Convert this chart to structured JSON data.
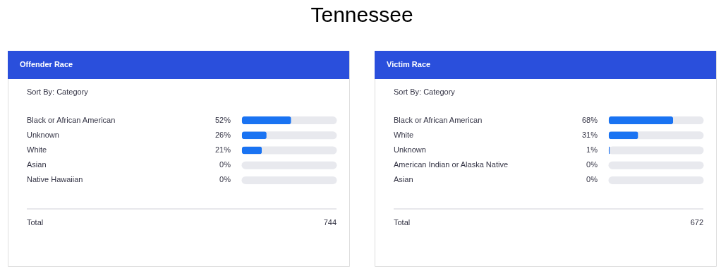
{
  "chart_data": [
    {
      "type": "bar",
      "orientation": "horizontal",
      "title": "Offender Race",
      "categories": [
        "Black or African American",
        "Unknown",
        "White",
        "Asian",
        "Native Hawaiian"
      ],
      "values": [
        52,
        26,
        21,
        0,
        0
      ],
      "value_labels": [
        "52%",
        "26%",
        "21%",
        "0%",
        "0%"
      ],
      "color": "#1a73f2",
      "annotations": [
        "Tennessee",
        "Sort By: Category",
        "Total",
        "744"
      ]
    },
    {
      "type": "bar",
      "orientation": "horizontal",
      "title": "Victim Race",
      "categories": [
        "Black or African American",
        "White",
        "Unknown",
        "American Indian or Alaska Native",
        "Asian"
      ],
      "values": [
        68,
        31,
        1,
        0,
        0
      ],
      "value_labels": [
        "68%",
        "31%",
        "1%",
        "0%",
        "0%"
      ],
      "color": "#1a73f2",
      "annotations": [
        "Sort By: Category",
        "Total",
        "672"
      ]
    }
  ]
}
